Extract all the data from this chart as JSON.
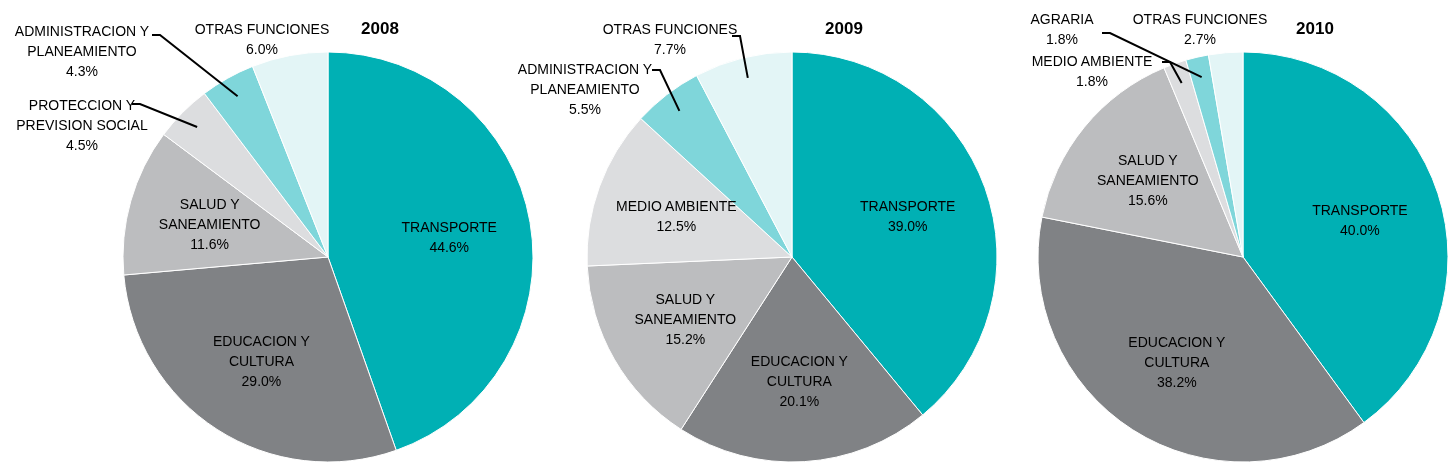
{
  "chart_data": [
    {
      "type": "pie",
      "title": "2008",
      "categories": [
        "TRANSPORTE",
        "EDUCACION Y CULTURA",
        "SALUD Y SANEAMIENTO",
        "PROTECCION Y PREVISION SOCIAL",
        "ADMINISTRACION Y PLANEAMIENTO",
        "OTRAS FUNCIONES"
      ],
      "values": [
        44.6,
        29.0,
        11.6,
        4.5,
        4.3,
        6.0
      ],
      "value_labels": [
        "44.6%",
        "29.0%",
        "11.6%",
        "4.5%",
        "4.3%",
        "6.0%"
      ],
      "colors": [
        "#00b0b4",
        "#808285",
        "#bcbdbf",
        "#dcdddf",
        "#7fd6da",
        "#e3f5f6"
      ]
    },
    {
      "type": "pie",
      "title": "2009",
      "categories": [
        "TRANSPORTE",
        "EDUCACION Y CULTURA",
        "SALUD Y SANEAMIENTO",
        "MEDIO AMBIENTE",
        "ADMINISTRACION Y PLANEAMIENTO",
        "OTRAS FUNCIONES"
      ],
      "values": [
        39.0,
        20.1,
        15.2,
        12.5,
        5.5,
        7.7
      ],
      "value_labels": [
        "39.0%",
        "20.1%",
        "15.2%",
        "12.5%",
        "5.5%",
        "7.7%"
      ],
      "colors": [
        "#00b0b4",
        "#808285",
        "#bcbdbf",
        "#dcdddf",
        "#7fd6da",
        "#e3f5f6"
      ]
    },
    {
      "type": "pie",
      "title": "2010",
      "categories": [
        "TRANSPORTE",
        "EDUCACION Y CULTURA",
        "SALUD Y SANEAMIENTO",
        "MEDIO AMBIENTE",
        "AGRARIA",
        "OTRAS FUNCIONES"
      ],
      "values": [
        40.0,
        38.2,
        15.6,
        1.8,
        1.8,
        2.7
      ],
      "value_labels": [
        "40.0%",
        "38.2%",
        "15.6%",
        "1.8%",
        "1.8%",
        "2.7%"
      ],
      "colors": [
        "#00b0b4",
        "#808285",
        "#bcbdbf",
        "#dcdddf",
        "#7fd6da",
        "#e3f5f6"
      ]
    }
  ]
}
